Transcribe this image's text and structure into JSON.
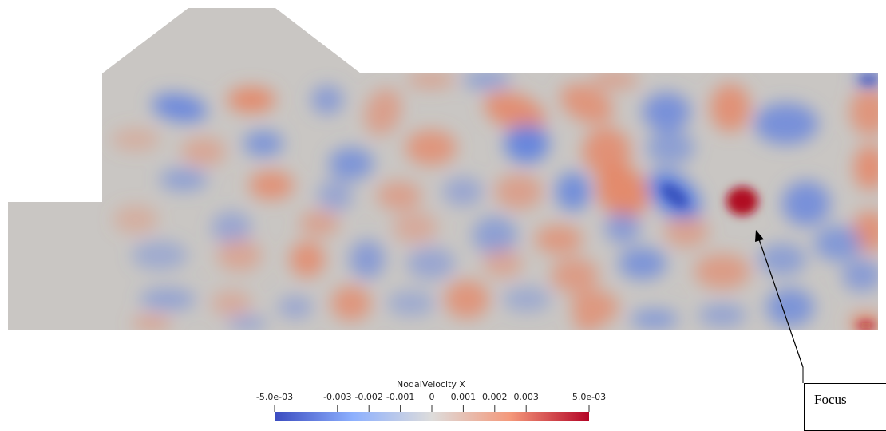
{
  "colorbar": {
    "title": "NodalVelocity X",
    "min": -0.005,
    "max": 0.005,
    "ticks": [
      {
        "value": -0.005,
        "label": "-5.0e-03"
      },
      {
        "value": -0.003,
        "label": "-0.003"
      },
      {
        "value": -0.002,
        "label": "-0.002"
      },
      {
        "value": -0.001,
        "label": "-0.001"
      },
      {
        "value": 0,
        "label": "0"
      },
      {
        "value": 0.001,
        "label": "0.001"
      },
      {
        "value": 0.002,
        "label": "0.002"
      },
      {
        "value": 0.003,
        "label": "0.003"
      },
      {
        "value": 0.005,
        "label": "5.0e-03"
      }
    ],
    "colors": {
      "low": "#3b4cc0",
      "mid": "#dddcdb",
      "high": "#b40426"
    }
  },
  "annotation": {
    "label": "Focus"
  },
  "field_colors": {
    "neutral": "#c9c6c3",
    "positive": "#e8805e",
    "negative": "#5d7fe0",
    "strong_positive": "#b00a22",
    "strong_negative": "#2e48b8"
  }
}
